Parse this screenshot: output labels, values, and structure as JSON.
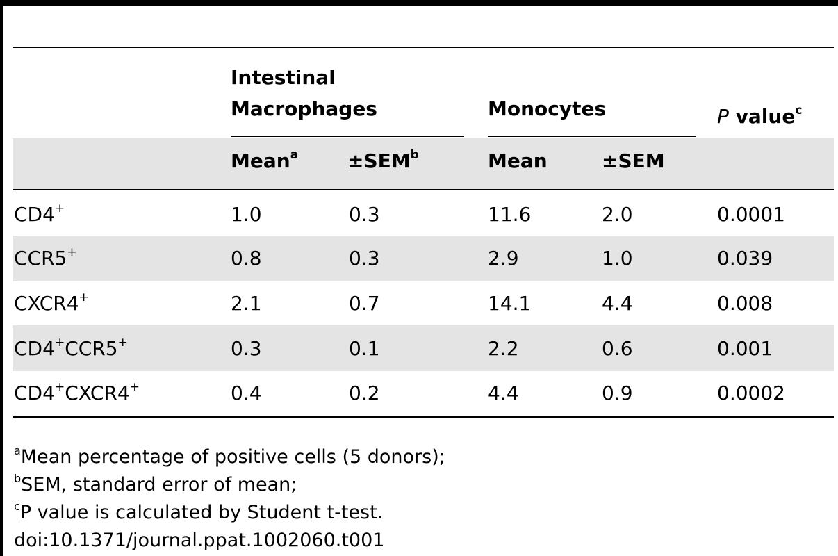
{
  "table": {
    "header": {
      "group_macrophages_line1": "Intestinal",
      "group_macrophages_line2": "Macrophages",
      "group_monocytes": "Monocytes",
      "pvalue_italic": "P",
      "pvalue_text": " value",
      "pvalue_sup": "c",
      "mean_label": "Mean",
      "mean_sup": "a",
      "sem_label": "±SEM",
      "sem_sup": "b",
      "mean2_label": "Mean",
      "sem2_label": "±SEM"
    },
    "rows": [
      {
        "parts": [
          {
            "t": "CD4"
          },
          {
            "s": "+"
          }
        ],
        "mac_mean": "1.0",
        "mac_sem": "0.3",
        "mono_mean": "11.6",
        "mono_sem": "2.0",
        "p": "0.0001"
      },
      {
        "parts": [
          {
            "t": "CCR5"
          },
          {
            "s": "+"
          }
        ],
        "mac_mean": "0.8",
        "mac_sem": "0.3",
        "mono_mean": "2.9",
        "mono_sem": "1.0",
        "p": "0.039"
      },
      {
        "parts": [
          {
            "t": "CXCR4"
          },
          {
            "s": "+"
          }
        ],
        "mac_mean": "2.1",
        "mac_sem": "0.7",
        "mono_mean": "14.1",
        "mono_sem": "4.4",
        "p": "0.008"
      },
      {
        "parts": [
          {
            "t": "CD4"
          },
          {
            "s": "+"
          },
          {
            "t": "CCR5"
          },
          {
            "s": "+"
          }
        ],
        "mac_mean": "0.3",
        "mac_sem": "0.1",
        "mono_mean": "2.2",
        "mono_sem": "0.6",
        "p": "0.001"
      },
      {
        "parts": [
          {
            "t": "CD4"
          },
          {
            "s": "+"
          },
          {
            "t": "CXCR4"
          },
          {
            "s": "+"
          }
        ],
        "mac_mean": "0.4",
        "mac_sem": "0.2",
        "mono_mean": "4.4",
        "mono_sem": "0.9",
        "p": "0.0002"
      }
    ]
  },
  "footnotes": [
    {
      "sup": "a",
      "text": "Mean percentage of positive cells (5 donors);"
    },
    {
      "sup": "b",
      "text": "SEM, standard error of mean;"
    },
    {
      "sup": "c",
      "text": "P value is calculated by Student t-test."
    }
  ],
  "doi": "doi:10.1371/journal.ppat.1002060.t001"
}
